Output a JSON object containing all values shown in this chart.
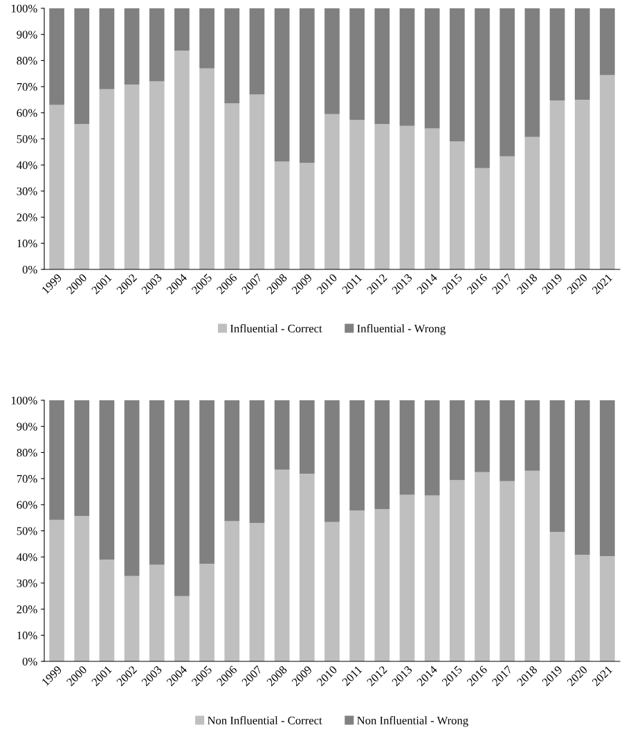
{
  "chart_data": [
    {
      "type": "bar",
      "stacked": true,
      "categories": [
        "1999",
        "2000",
        "2001",
        "2002",
        "2003",
        "2004",
        "2005",
        "2006",
        "2007",
        "2008",
        "2009",
        "2010",
        "2011",
        "2012",
        "2013",
        "2014",
        "2015",
        "2016",
        "2017",
        "2018",
        "2019",
        "2020",
        "2021"
      ],
      "series": [
        {
          "name": "Influential - Correct",
          "color": "#bfbfbf",
          "values": [
            63,
            55.7,
            69,
            70.8,
            72,
            83.8,
            77,
            63.6,
            67,
            41.3,
            40.8,
            59.5,
            57.3,
            55.7,
            55,
            54,
            49,
            38.8,
            43.3,
            50.7,
            64.7,
            65,
            74.4
          ]
        },
        {
          "name": "Influential - Wrong",
          "color": "#808080",
          "values": [
            37,
            44.3,
            31,
            29.2,
            28,
            16.2,
            23,
            36.4,
            33,
            58.7,
            59.2,
            40.5,
            42.7,
            44.3,
            45,
            46,
            51,
            61.2,
            56.7,
            49.3,
            35.3,
            35,
            25.6
          ]
        }
      ],
      "ylim": [
        0,
        100
      ],
      "yticks": [
        {
          "value": 0,
          "label": "0%"
        },
        {
          "value": 10,
          "label": "10%"
        },
        {
          "value": 20,
          "label": "20%"
        },
        {
          "value": 30,
          "label": "30%"
        },
        {
          "value": 40,
          "label": "40%"
        },
        {
          "value": 50,
          "label": "50%"
        },
        {
          "value": 60,
          "label": "60%"
        },
        {
          "value": 70,
          "label": "70%"
        },
        {
          "value": 80,
          "label": "80%"
        },
        {
          "value": 90,
          "label": "90%"
        },
        {
          "value": 100,
          "label": "100%"
        }
      ],
      "legend": "bottom",
      "grid": false
    },
    {
      "type": "bar",
      "stacked": true,
      "categories": [
        "1999",
        "2000",
        "2001",
        "2002",
        "2003",
        "2004",
        "2005",
        "2006",
        "2007",
        "2008",
        "2009",
        "2010",
        "2011",
        "2012",
        "2013",
        "2014",
        "2015",
        "2016",
        "2017",
        "2018",
        "2019",
        "2020",
        "2021"
      ],
      "series": [
        {
          "name": "Non Influential - Correct",
          "color": "#bfbfbf",
          "values": [
            54.2,
            55.7,
            39,
            32.7,
            37,
            25,
            37.4,
            53.7,
            53,
            73.5,
            71.9,
            53.4,
            57.8,
            58.3,
            63.8,
            63.5,
            69.4,
            72.5,
            69,
            73,
            49.6,
            40.8,
            40.3
          ]
        },
        {
          "name": "Non Influential - Wrong",
          "color": "#808080",
          "values": [
            45.8,
            44.3,
            61,
            67.3,
            63,
            75,
            62.6,
            46.3,
            47,
            26.5,
            28.1,
            46.6,
            42.2,
            41.7,
            36.2,
            36.5,
            30.6,
            27.5,
            31,
            27,
            50.4,
            59.2,
            59.7
          ]
        }
      ],
      "ylim": [
        0,
        100
      ],
      "yticks": [
        {
          "value": 0,
          "label": "0%"
        },
        {
          "value": 10,
          "label": "10%"
        },
        {
          "value": 20,
          "label": "20%"
        },
        {
          "value": 30,
          "label": "30%"
        },
        {
          "value": 40,
          "label": "40%"
        },
        {
          "value": 50,
          "label": "50%"
        },
        {
          "value": 60,
          "label": "60%"
        },
        {
          "value": 70,
          "label": "70%"
        },
        {
          "value": 80,
          "label": "80%"
        },
        {
          "value": 90,
          "label": "90%"
        },
        {
          "value": 100,
          "label": "100%"
        }
      ],
      "legend": "bottom",
      "grid": false
    }
  ]
}
